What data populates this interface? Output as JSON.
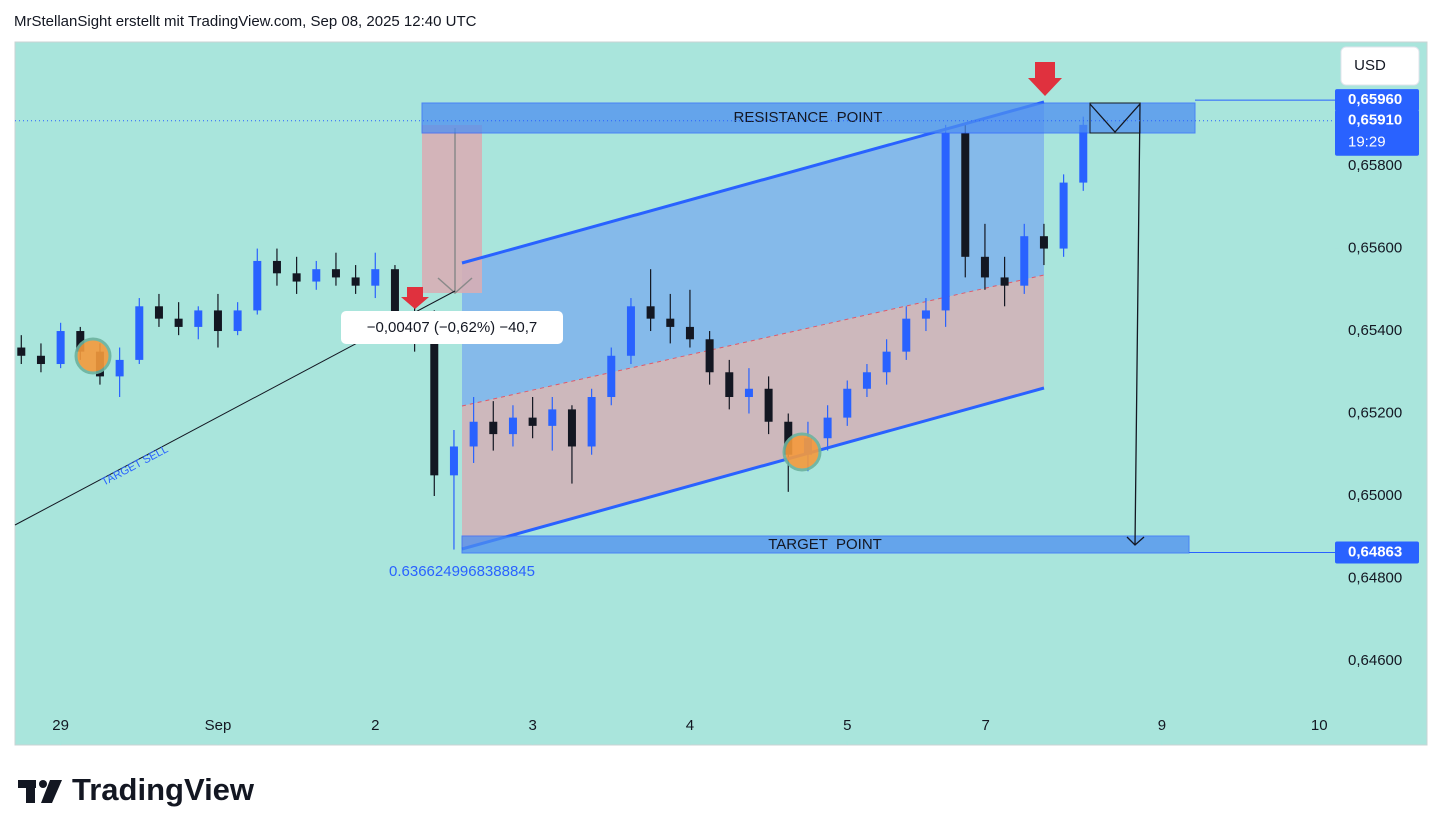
{
  "chart_data": {
    "type": "candlestick",
    "title": "MrStellanSight erstellt mit TradingView.com, Sep 08, 2025 12:40 UTC",
    "currency": "USD",
    "colors": {
      "up": "#2962ff",
      "down": "#131722",
      "background": "#a9e5dc"
    },
    "xlim": [
      -0.29,
      8.1
    ],
    "ylim": [
      0.64396,
      0.66101
    ],
    "xticks": [
      {
        "value": 0,
        "label": "29"
      },
      {
        "value": 1,
        "label": "Sep"
      },
      2,
      3,
      4,
      5,
      {
        "value": 5.88,
        "label": "7"
      },
      {
        "value": 7,
        "label": "9"
      },
      {
        "value": 8,
        "label": "10"
      }
    ],
    "yticks": [
      {
        "value": 0.658,
        "label": "0,65800"
      },
      {
        "value": 0.656,
        "label": "0,65600"
      },
      {
        "value": 0.654,
        "label": "0,65400"
      },
      {
        "value": 0.652,
        "label": "0,65200"
      },
      {
        "value": 0.65,
        "label": "0,65000"
      },
      {
        "value": 0.648,
        "label": "0,64800"
      },
      {
        "value": 0.646,
        "label": "0,64600"
      }
    ],
    "price_labels": [
      {
        "value": 0.6596,
        "label": "0,65960"
      },
      {
        "value": 0.6591,
        "label": "0,65910"
      },
      {
        "value": 0.64863,
        "label": "0,64863"
      }
    ],
    "countdown": "19:29",
    "annotations": {
      "resistance": "RESISTANCE  POINT",
      "target": "TARGET  POINT",
      "target_sell": "TARGET SELL",
      "measure": "−0,00407 (−0,62%) −40,7",
      "low_label": "0.6366249968388845"
    },
    "x": [
      -0.25,
      -0.125,
      0,
      0.125,
      0.25,
      0.375,
      0.5,
      0.625,
      0.75,
      0.875,
      1,
      1.125,
      1.25,
      1.375,
      1.5,
      1.625,
      1.75,
      1.875,
      2,
      2.125,
      2.25,
      2.375,
      2.5,
      2.625,
      2.75,
      2.875,
      3,
      3.125,
      3.25,
      3.375,
      3.5,
      3.625,
      3.75,
      3.875,
      4,
      4.125,
      4.25,
      4.375,
      4.5,
      4.625,
      4.75,
      4.875,
      5,
      5.125,
      5.25,
      5.375,
      5.5,
      5.625,
      5.75,
      5.875,
      6,
      6.125,
      6.25,
      6.375,
      6.5
    ],
    "open": [
      0.6536,
      0.6534,
      0.6532,
      0.654,
      0.6535,
      0.6529,
      0.6533,
      0.6546,
      0.6543,
      0.6541,
      0.6545,
      0.654,
      0.6545,
      0.6557,
      0.6554,
      0.6552,
      0.6555,
      0.6553,
      0.6551,
      0.6555,
      0.6544,
      0.6538,
      0.6505,
      0.6512,
      0.6518,
      0.6515,
      0.6519,
      0.6517,
      0.6521,
      0.6512,
      0.6524,
      0.6534,
      0.6546,
      0.6543,
      0.6541,
      0.6538,
      0.653,
      0.6524,
      0.6526,
      0.6518,
      0.651,
      0.6514,
      0.6519,
      0.6526,
      0.653,
      0.6535,
      0.6543,
      0.6545,
      0.6588,
      0.6558,
      0.6553,
      0.6551,
      0.6563,
      0.656,
      0.6576
    ],
    "high": [
      0.6539,
      0.6537,
      0.6542,
      0.6541,
      0.6537,
      0.6536,
      0.6548,
      0.6549,
      0.6547,
      0.6546,
      0.6549,
      0.6547,
      0.656,
      0.656,
      0.6558,
      0.6557,
      0.6559,
      0.6556,
      0.6559,
      0.6556,
      0.6546,
      0.6545,
      0.6516,
      0.6524,
      0.6523,
      0.6522,
      0.6524,
      0.6524,
      0.6522,
      0.6526,
      0.6536,
      0.6548,
      0.6555,
      0.6549,
      0.655,
      0.654,
      0.6533,
      0.6531,
      0.6529,
      0.652,
      0.6518,
      0.6522,
      0.6528,
      0.6532,
      0.6538,
      0.6546,
      0.6548,
      0.659,
      0.659,
      0.6566,
      0.6558,
      0.6566,
      0.6566,
      0.6578,
      0.6592
    ],
    "low": [
      0.6532,
      0.653,
      0.6531,
      0.6533,
      0.6527,
      0.6524,
      0.6532,
      0.6541,
      0.6539,
      0.6538,
      0.6536,
      0.6539,
      0.6544,
      0.6551,
      0.6549,
      0.655,
      0.6551,
      0.6549,
      0.6548,
      0.6542,
      0.6535,
      0.65,
      0.6487,
      0.6508,
      0.6511,
      0.6512,
      0.6514,
      0.6511,
      0.6503,
      0.651,
      0.6522,
      0.6532,
      0.654,
      0.6537,
      0.6536,
      0.6527,
      0.6521,
      0.652,
      0.6515,
      0.6501,
      0.6506,
      0.6511,
      0.6517,
      0.6524,
      0.6527,
      0.6533,
      0.654,
      0.6541,
      0.6553,
      0.655,
      0.6546,
      0.6549,
      0.6556,
      0.6558,
      0.6574
    ],
    "close": [
      0.6534,
      0.6532,
      0.654,
      0.6535,
      0.6529,
      0.6533,
      0.6546,
      0.6543,
      0.6541,
      0.6545,
      0.654,
      0.6545,
      0.6557,
      0.6554,
      0.6552,
      0.6555,
      0.6553,
      0.6551,
      0.6555,
      0.6544,
      0.6538,
      0.6505,
      0.6512,
      0.6518,
      0.6515,
      0.6519,
      0.6517,
      0.6521,
      0.6512,
      0.6524,
      0.6534,
      0.6546,
      0.6543,
      0.6541,
      0.6538,
      0.653,
      0.6524,
      0.6526,
      0.6518,
      0.651,
      0.6514,
      0.6519,
      0.6526,
      0.653,
      0.6535,
      0.6543,
      0.6545,
      0.6588,
      0.6558,
      0.6553,
      0.6551,
      0.6563,
      0.656,
      0.6576,
      0.659
    ]
  },
  "footer": {
    "brand": "TradingView"
  }
}
